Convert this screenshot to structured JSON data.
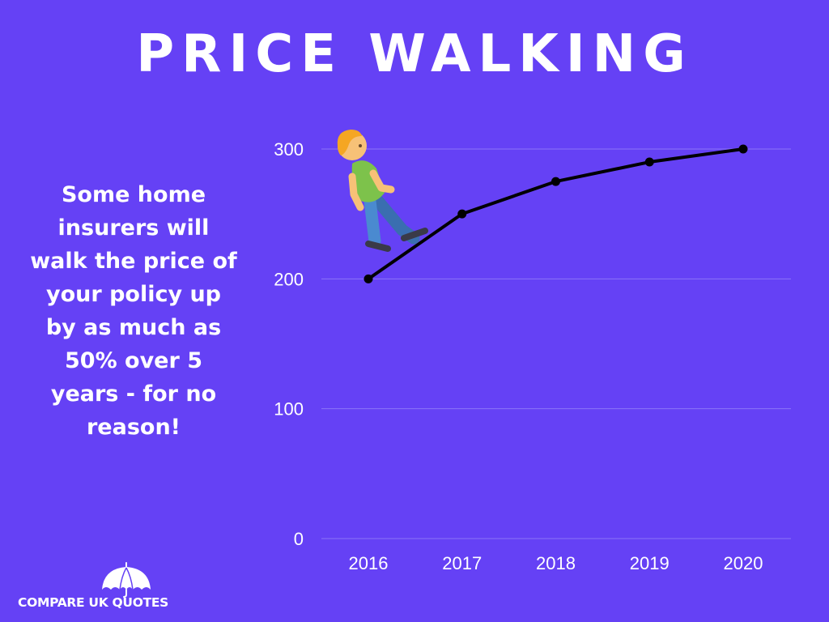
{
  "title": "PRICE WALKING",
  "blurb": "Some home\ninsurers  will\nwalk the price of\nyour policy up\nby as much as\n50% over 5\nyears - for no\nreason!",
  "logo": {
    "icon": "umbrella-icon",
    "text_part1": "COMPARE UK ",
    "text_part2": "QUOTES"
  },
  "illustration": {
    "icon": "walking-person-icon"
  },
  "colors": {
    "background": "#6541f5",
    "line": "#000000",
    "grid": "#8c74f7",
    "text": "#ffffff"
  },
  "chart_data": {
    "type": "line",
    "x": [
      "2016",
      "2017",
      "2018",
      "2019",
      "2020"
    ],
    "series": [
      {
        "values": [
          200,
          250,
          275,
          290,
          300
        ]
      }
    ],
    "ylim": [
      0,
      300
    ],
    "yticks": [
      0,
      100,
      200,
      300
    ],
    "grid": true,
    "legend": "none",
    "markers": true
  }
}
